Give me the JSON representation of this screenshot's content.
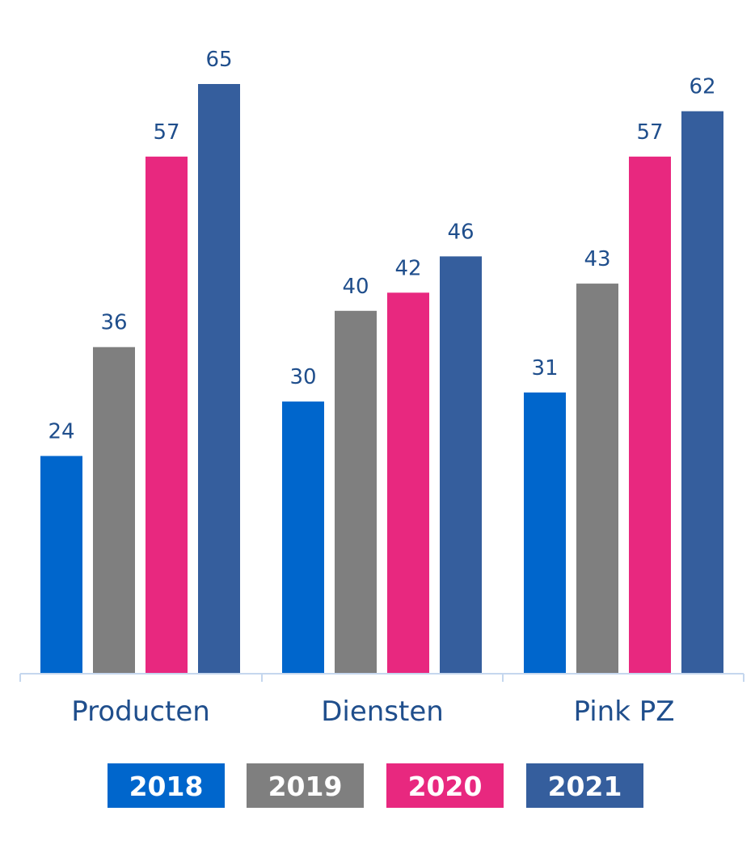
{
  "chart_data": {
    "type": "bar",
    "title": "",
    "xlabel": "",
    "ylabel": "",
    "ylim": [
      0,
      65
    ],
    "grid": false,
    "legend_position": "bottom",
    "categories": [
      "Producten",
      "Diensten",
      "Pink PZ"
    ],
    "series": [
      {
        "name": "2018",
        "color": "#0066cc",
        "values": [
          24,
          30,
          31
        ]
      },
      {
        "name": "2019",
        "color": "#7f7f7f",
        "values": [
          36,
          40,
          43
        ]
      },
      {
        "name": "2020",
        "color": "#e8287f",
        "values": [
          57,
          42,
          57
        ]
      },
      {
        "name": "2021",
        "color": "#355e9d",
        "values": [
          65,
          46,
          62
        ]
      }
    ]
  },
  "colors": {
    "axis": "#c5d7ee",
    "text": "#1f4e8c",
    "legend_text": "#ffffff"
  }
}
